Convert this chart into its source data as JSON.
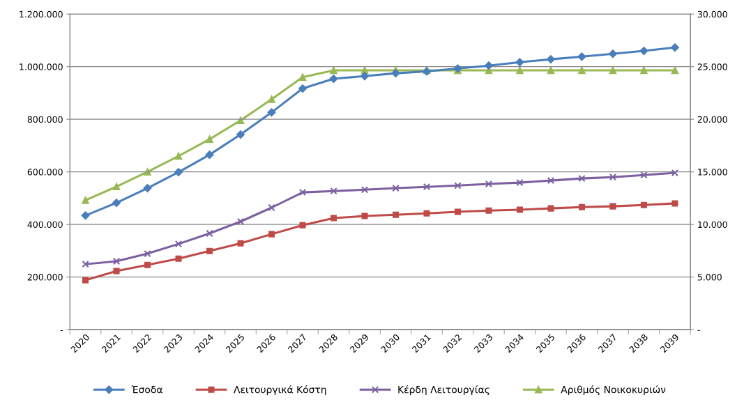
{
  "chart_data": {
    "type": "line",
    "categories": [
      "2020",
      "2021",
      "2022",
      "2023",
      "2024",
      "2025",
      "2026",
      "2027",
      "2028",
      "2029",
      "2030",
      "2031",
      "2032",
      "2033",
      "2034",
      "2035",
      "2036",
      "2037",
      "2038",
      "2039"
    ],
    "series": [
      {
        "name": "Έσοδα",
        "color": "#4a7ebb",
        "marker": "diamond",
        "values": [
          434000,
          482000,
          538000,
          599000,
          665000,
          742000,
          826000,
          917000,
          954000,
          964000,
          975000,
          982000,
          993000,
          1004000,
          1017000,
          1028000,
          1038000,
          1049000,
          1060000,
          1073000
        ]
      },
      {
        "name": "Λειτουργικά Κόστη",
        "color": "#be4b48",
        "marker": "square",
        "values": [
          188000,
          223000,
          246000,
          270000,
          299000,
          328000,
          363000,
          397000,
          424000,
          432000,
          437000,
          442000,
          448000,
          453000,
          456000,
          461000,
          466000,
          469000,
          474000,
          480000
        ]
      },
      {
        "name": "Κέρδη Λειτουργίας",
        "color": "#7d60a0",
        "marker": "cross",
        "values": [
          249000,
          260000,
          289000,
          326000,
          366000,
          411000,
          464000,
          522000,
          527000,
          532000,
          538000,
          543000,
          548000,
          554000,
          559000,
          567000,
          575000,
          580000,
          588000,
          596000
        ]
      },
      {
        "name": "Αριθμός Νοικοκυριών",
        "color": "#98b954",
        "marker": "triangle",
        "axis": "y2",
        "values": [
          12300,
          13600,
          15000,
          16500,
          18100,
          19900,
          21900,
          24000,
          24650,
          24650,
          24650,
          24650,
          24650,
          24650,
          24650,
          24650,
          24650,
          24650,
          24650,
          24650
        ]
      }
    ],
    "ylim": [
      0,
      1200000
    ],
    "yticks": [
      {
        "value": 0,
        "label": "-"
      },
      {
        "value": 200000,
        "label": "200.000"
      },
      {
        "value": 400000,
        "label": "400.000"
      },
      {
        "value": 600000,
        "label": "600.000"
      },
      {
        "value": 800000,
        "label": "800.000"
      },
      {
        "value": 1000000,
        "label": "1.000.000"
      },
      {
        "value": 1200000,
        "label": "1.200.000"
      }
    ],
    "y2lim": [
      0,
      30000
    ],
    "y2ticks": [
      {
        "value": 0,
        "label": "-"
      },
      {
        "value": 5000,
        "label": "5.000"
      },
      {
        "value": 10000,
        "label": "10.000"
      },
      {
        "value": 15000,
        "label": "15.000"
      },
      {
        "value": 20000,
        "label": "20.000"
      },
      {
        "value": 25000,
        "label": "25.000"
      },
      {
        "value": 30000,
        "label": "30.000"
      }
    ],
    "grid": "y",
    "legend": "bottom",
    "line_style": "solid"
  }
}
